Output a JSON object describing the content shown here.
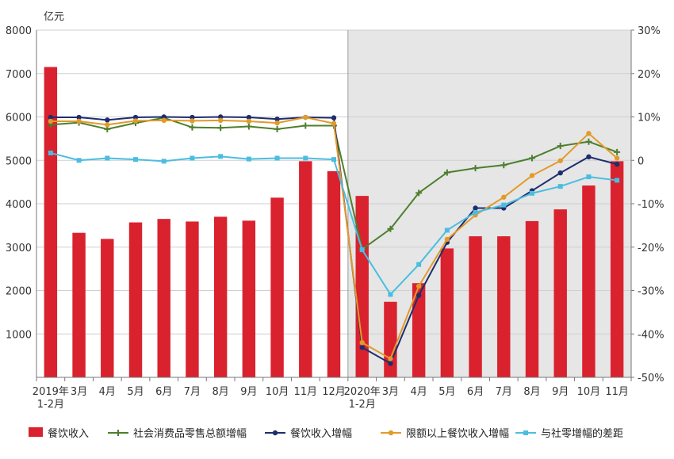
{
  "chart_data": {
    "type": "bar+line",
    "y_left_unit": "亿元",
    "y_left_ticks": [
      "8000",
      "7000",
      "6000",
      "5000",
      "4000",
      "3000",
      "2000",
      "1000"
    ],
    "y_left_range": [
      0,
      8000
    ],
    "y_right_ticks": [
      "30%",
      "20%",
      "10%",
      "0",
      "-10%",
      "-20%",
      "-30%",
      "-40%",
      "-50%"
    ],
    "y_right_range": [
      -50,
      30
    ],
    "x_labels": [
      [
        "2019年",
        "1-2月"
      ],
      [
        "3月"
      ],
      [
        "4月"
      ],
      [
        "5月"
      ],
      [
        "6月"
      ],
      [
        "7月"
      ],
      [
        "8月"
      ],
      [
        "9月"
      ],
      [
        "10月"
      ],
      [
        "11月"
      ],
      [
        "12月"
      ],
      [
        "2020年",
        "1-2月"
      ],
      [
        "3月"
      ],
      [
        "4月"
      ],
      [
        "5月"
      ],
      [
        "6月"
      ],
      [
        "7月"
      ],
      [
        "8月"
      ],
      [
        "9月"
      ],
      [
        "10月"
      ],
      [
        "11月"
      ]
    ],
    "shade_from_index": 11,
    "bars": {
      "name": "餐饮收入",
      "color": "#d9222e",
      "values": [
        7150,
        3330,
        3190,
        3570,
        3650,
        3590,
        3700,
        3610,
        4140,
        4980,
        4750,
        4180,
        1740,
        2170,
        2970,
        3250,
        3250,
        3600,
        3870,
        4420,
        4980
      ]
    },
    "series": [
      {
        "name": "社会消费品零售总额增幅",
        "color": "#4c7f2c",
        "marker": "plus",
        "values": [
          8.2,
          8.7,
          7.2,
          8.6,
          9.8,
          7.6,
          7.5,
          7.8,
          7.2,
          8.0,
          8.0,
          -20.5,
          -15.8,
          -7.5,
          -2.8,
          -1.8,
          -1.1,
          0.5,
          3.3,
          4.3,
          1.9
        ]
      },
      {
        "name": "餐饮收入增幅",
        "color": "#1f2d6e",
        "marker": "circle",
        "values": [
          9.9,
          9.9,
          9.3,
          9.9,
          10.0,
          9.9,
          10.0,
          9.9,
          9.5,
          9.9,
          9.8,
          -43.1,
          -46.8,
          -31.1,
          -18.9,
          -11.0,
          -11.0,
          -7.0,
          -2.9,
          0.8,
          -0.9
        ]
      },
      {
        "name": "限额以上餐饮收入增幅",
        "color": "#e29a2a",
        "marker": "circle",
        "values": [
          9.0,
          9.0,
          8.2,
          9.1,
          9.2,
          9.1,
          9.2,
          9.0,
          8.6,
          9.9,
          8.5,
          -42.0,
          -45.7,
          -29.0,
          -18.2,
          -12.6,
          -8.5,
          -3.5,
          -0.1,
          6.2,
          0.5
        ]
      },
      {
        "name": "与社零增幅的差距",
        "color": "#4bbde0",
        "marker": "square",
        "values": [
          1.7,
          0.0,
          0.5,
          0.2,
          -0.2,
          0.5,
          0.9,
          0.3,
          0.5,
          0.5,
          0.2,
          -20.6,
          -30.9,
          -24.0,
          -16.1,
          -12.0,
          -10.3,
          -7.6,
          -6.0,
          -3.8,
          -4.6
        ]
      }
    ],
    "legend_position": "bottom"
  }
}
